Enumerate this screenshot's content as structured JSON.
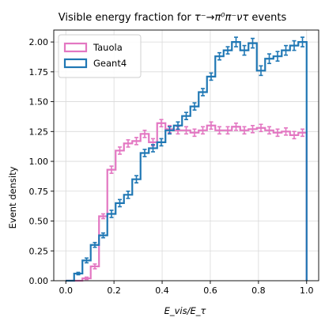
{
  "chart_data": {
    "type": "histogram-step",
    "title": {
      "prefix": "Visible energy fraction for ",
      "formula": "τ⁻→π⁰π⁻ντ",
      "suffix": " events"
    },
    "xlabel": "E_vis/E_τ",
    "ylabel": "Event density",
    "xlim": [
      -0.05,
      1.05
    ],
    "ylim": [
      0,
      2.1
    ],
    "xticks": [
      0.0,
      0.2,
      0.4,
      0.6,
      0.8,
      1.0
    ],
    "xtick_labels": [
      "0.0",
      "0.2",
      "0.4",
      "0.6",
      "0.8",
      "1.0"
    ],
    "yticks": [
      0.0,
      0.25,
      0.5,
      0.75,
      1.0,
      1.25,
      1.5,
      1.75,
      2.0
    ],
    "ytick_labels": [
      "0.00",
      "0.25",
      "0.50",
      "0.75",
      "1.00",
      "1.25",
      "1.50",
      "1.75",
      "2.00"
    ],
    "grid": true,
    "legend_position": "top-left",
    "bin_edges": [
      0.0,
      0.0345,
      0.069,
      0.1034,
      0.1379,
      0.1724,
      0.2069,
      0.2414,
      0.2759,
      0.3103,
      0.3448,
      0.3793,
      0.4138,
      0.4483,
      0.4828,
      0.5172,
      0.5517,
      0.5862,
      0.6207,
      0.6552,
      0.6897,
      0.7241,
      0.7586,
      0.7931,
      0.8276,
      0.8621,
      0.8966,
      0.931,
      0.9655,
      1.0
    ],
    "series": [
      {
        "name": "Tauola",
        "color": "#e377c2",
        "values": [
          0.0,
          0.0,
          0.02,
          0.12,
          0.54,
          0.93,
          1.09,
          1.15,
          1.17,
          1.23,
          1.16,
          1.32,
          1.27,
          1.26,
          1.26,
          1.24,
          1.26,
          1.3,
          1.26,
          1.26,
          1.29,
          1.26,
          1.27,
          1.28,
          1.26,
          1.24,
          1.25,
          1.22,
          1.24
        ],
        "errors": [
          0.0,
          0.0,
          0.01,
          0.02,
          0.02,
          0.03,
          0.03,
          0.03,
          0.03,
          0.03,
          0.03,
          0.03,
          0.03,
          0.03,
          0.03,
          0.03,
          0.03,
          0.03,
          0.03,
          0.03,
          0.03,
          0.03,
          0.03,
          0.03,
          0.03,
          0.03,
          0.03,
          0.03,
          0.03
        ]
      },
      {
        "name": "Geant4",
        "color": "#1f77b4",
        "values": [
          0.0,
          0.06,
          0.17,
          0.3,
          0.38,
          0.56,
          0.65,
          0.72,
          0.85,
          1.07,
          1.11,
          1.16,
          1.26,
          1.3,
          1.38,
          1.46,
          1.58,
          1.71,
          1.88,
          1.93,
          2.0,
          1.93,
          1.99,
          1.76,
          1.86,
          1.88,
          1.93,
          1.97,
          2.0
        ],
        "errors": [
          0.0,
          0.01,
          0.02,
          0.02,
          0.02,
          0.03,
          0.03,
          0.03,
          0.03,
          0.03,
          0.03,
          0.03,
          0.03,
          0.03,
          0.03,
          0.03,
          0.03,
          0.03,
          0.03,
          0.03,
          0.04,
          0.04,
          0.04,
          0.04,
          0.04,
          0.04,
          0.04,
          0.04,
          0.04
        ]
      }
    ]
  }
}
